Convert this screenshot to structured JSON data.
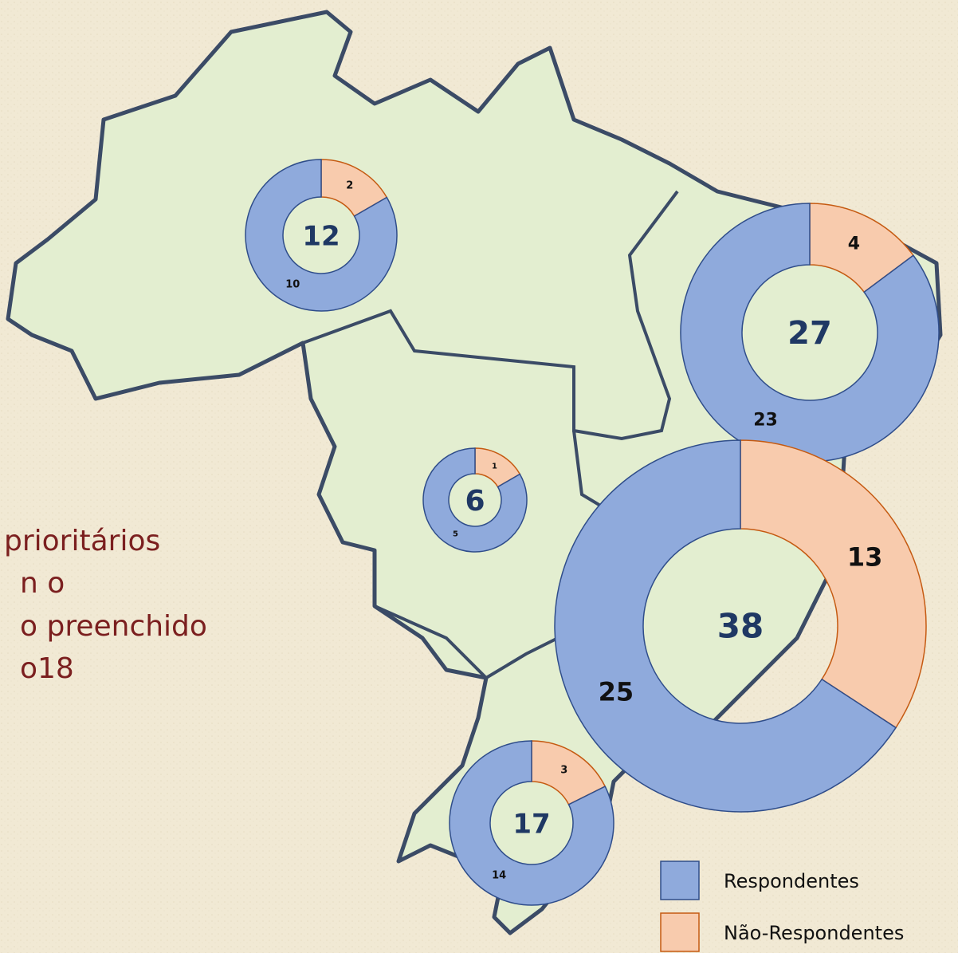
{
  "text_lines": [
    "prioritários",
    "n o",
    "o preenchido",
    "o18"
  ],
  "legend": [
    {
      "name": "Respondentes",
      "color": "#8faadc",
      "stroke": "#2f4d8a"
    },
    {
      "name": "Não-Respondentes",
      "color": "#f8cbad",
      "stroke": "#c55a11"
    }
  ],
  "regions": [
    {
      "total": 12,
      "values": [
        10,
        2
      ]
    },
    {
      "total": 27,
      "values": [
        23,
        4
      ]
    },
    {
      "total": 6,
      "values": [
        5,
        1
      ]
    },
    {
      "total": 38,
      "values": [
        25,
        13
      ]
    },
    {
      "total": 17,
      "values": [
        14,
        3
      ]
    }
  ]
}
